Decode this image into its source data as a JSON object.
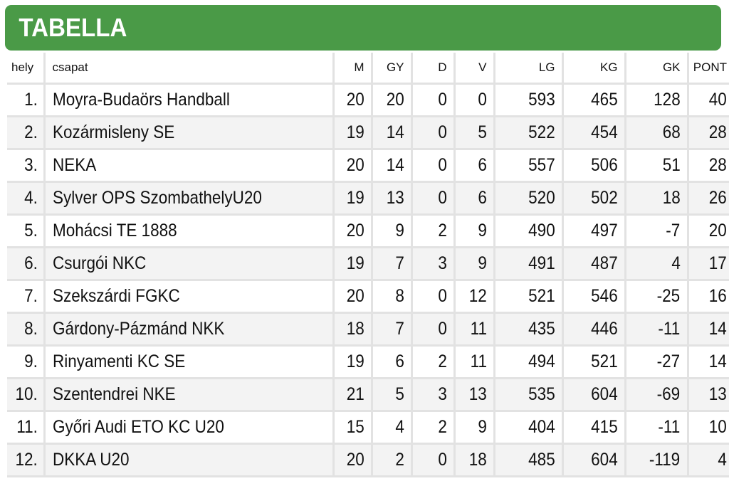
{
  "title": "TABELLA",
  "columns": [
    "hely",
    "csapat",
    "M",
    "GY",
    "D",
    "V",
    "LG",
    "KG",
    "GK",
    "PONT"
  ],
  "rows": [
    [
      "1.",
      "Moyra-Budaörs Handball",
      "20",
      "20",
      "0",
      "0",
      "593",
      "465",
      "128",
      "40"
    ],
    [
      "2.",
      "Kozármisleny SE",
      "19",
      "14",
      "0",
      "5",
      "522",
      "454",
      "68",
      "28"
    ],
    [
      "3.",
      "NEKA",
      "20",
      "14",
      "0",
      "6",
      "557",
      "506",
      "51",
      "28"
    ],
    [
      "4.",
      "Sylver OPS SzombathelyU20",
      "19",
      "13",
      "0",
      "6",
      "520",
      "502",
      "18",
      "26"
    ],
    [
      "5.",
      "Mohácsi TE 1888",
      "20",
      "9",
      "2",
      "9",
      "490",
      "497",
      "-7",
      "20"
    ],
    [
      "6.",
      "Csurgói NKC",
      "19",
      "7",
      "3",
      "9",
      "491",
      "487",
      "4",
      "17"
    ],
    [
      "7.",
      "Szekszárdi FGKC",
      "20",
      "8",
      "0",
      "12",
      "521",
      "546",
      "-25",
      "16"
    ],
    [
      "8.",
      "Gárdony-Pázmánd NKK",
      "18",
      "7",
      "0",
      "11",
      "435",
      "446",
      "-11",
      "14"
    ],
    [
      "9.",
      "Rinyamenti KC SE",
      "19",
      "6",
      "2",
      "11",
      "494",
      "521",
      "-27",
      "14"
    ],
    [
      "10.",
      "Szentendrei NKE",
      "21",
      "5",
      "3",
      "13",
      "535",
      "604",
      "-69",
      "13"
    ],
    [
      "11.",
      "Győri Audi ETO KC U20",
      "15",
      "4",
      "2",
      "9",
      "404",
      "415",
      "-11",
      "10"
    ],
    [
      "12.",
      "DKKA U20",
      "20",
      "2",
      "0",
      "18",
      "485",
      "604",
      "-119",
      "4"
    ]
  ],
  "colors": {
    "banner": "#4a9a47",
    "grid": "#e2e2e2",
    "stripe": "#f3f3f3"
  }
}
